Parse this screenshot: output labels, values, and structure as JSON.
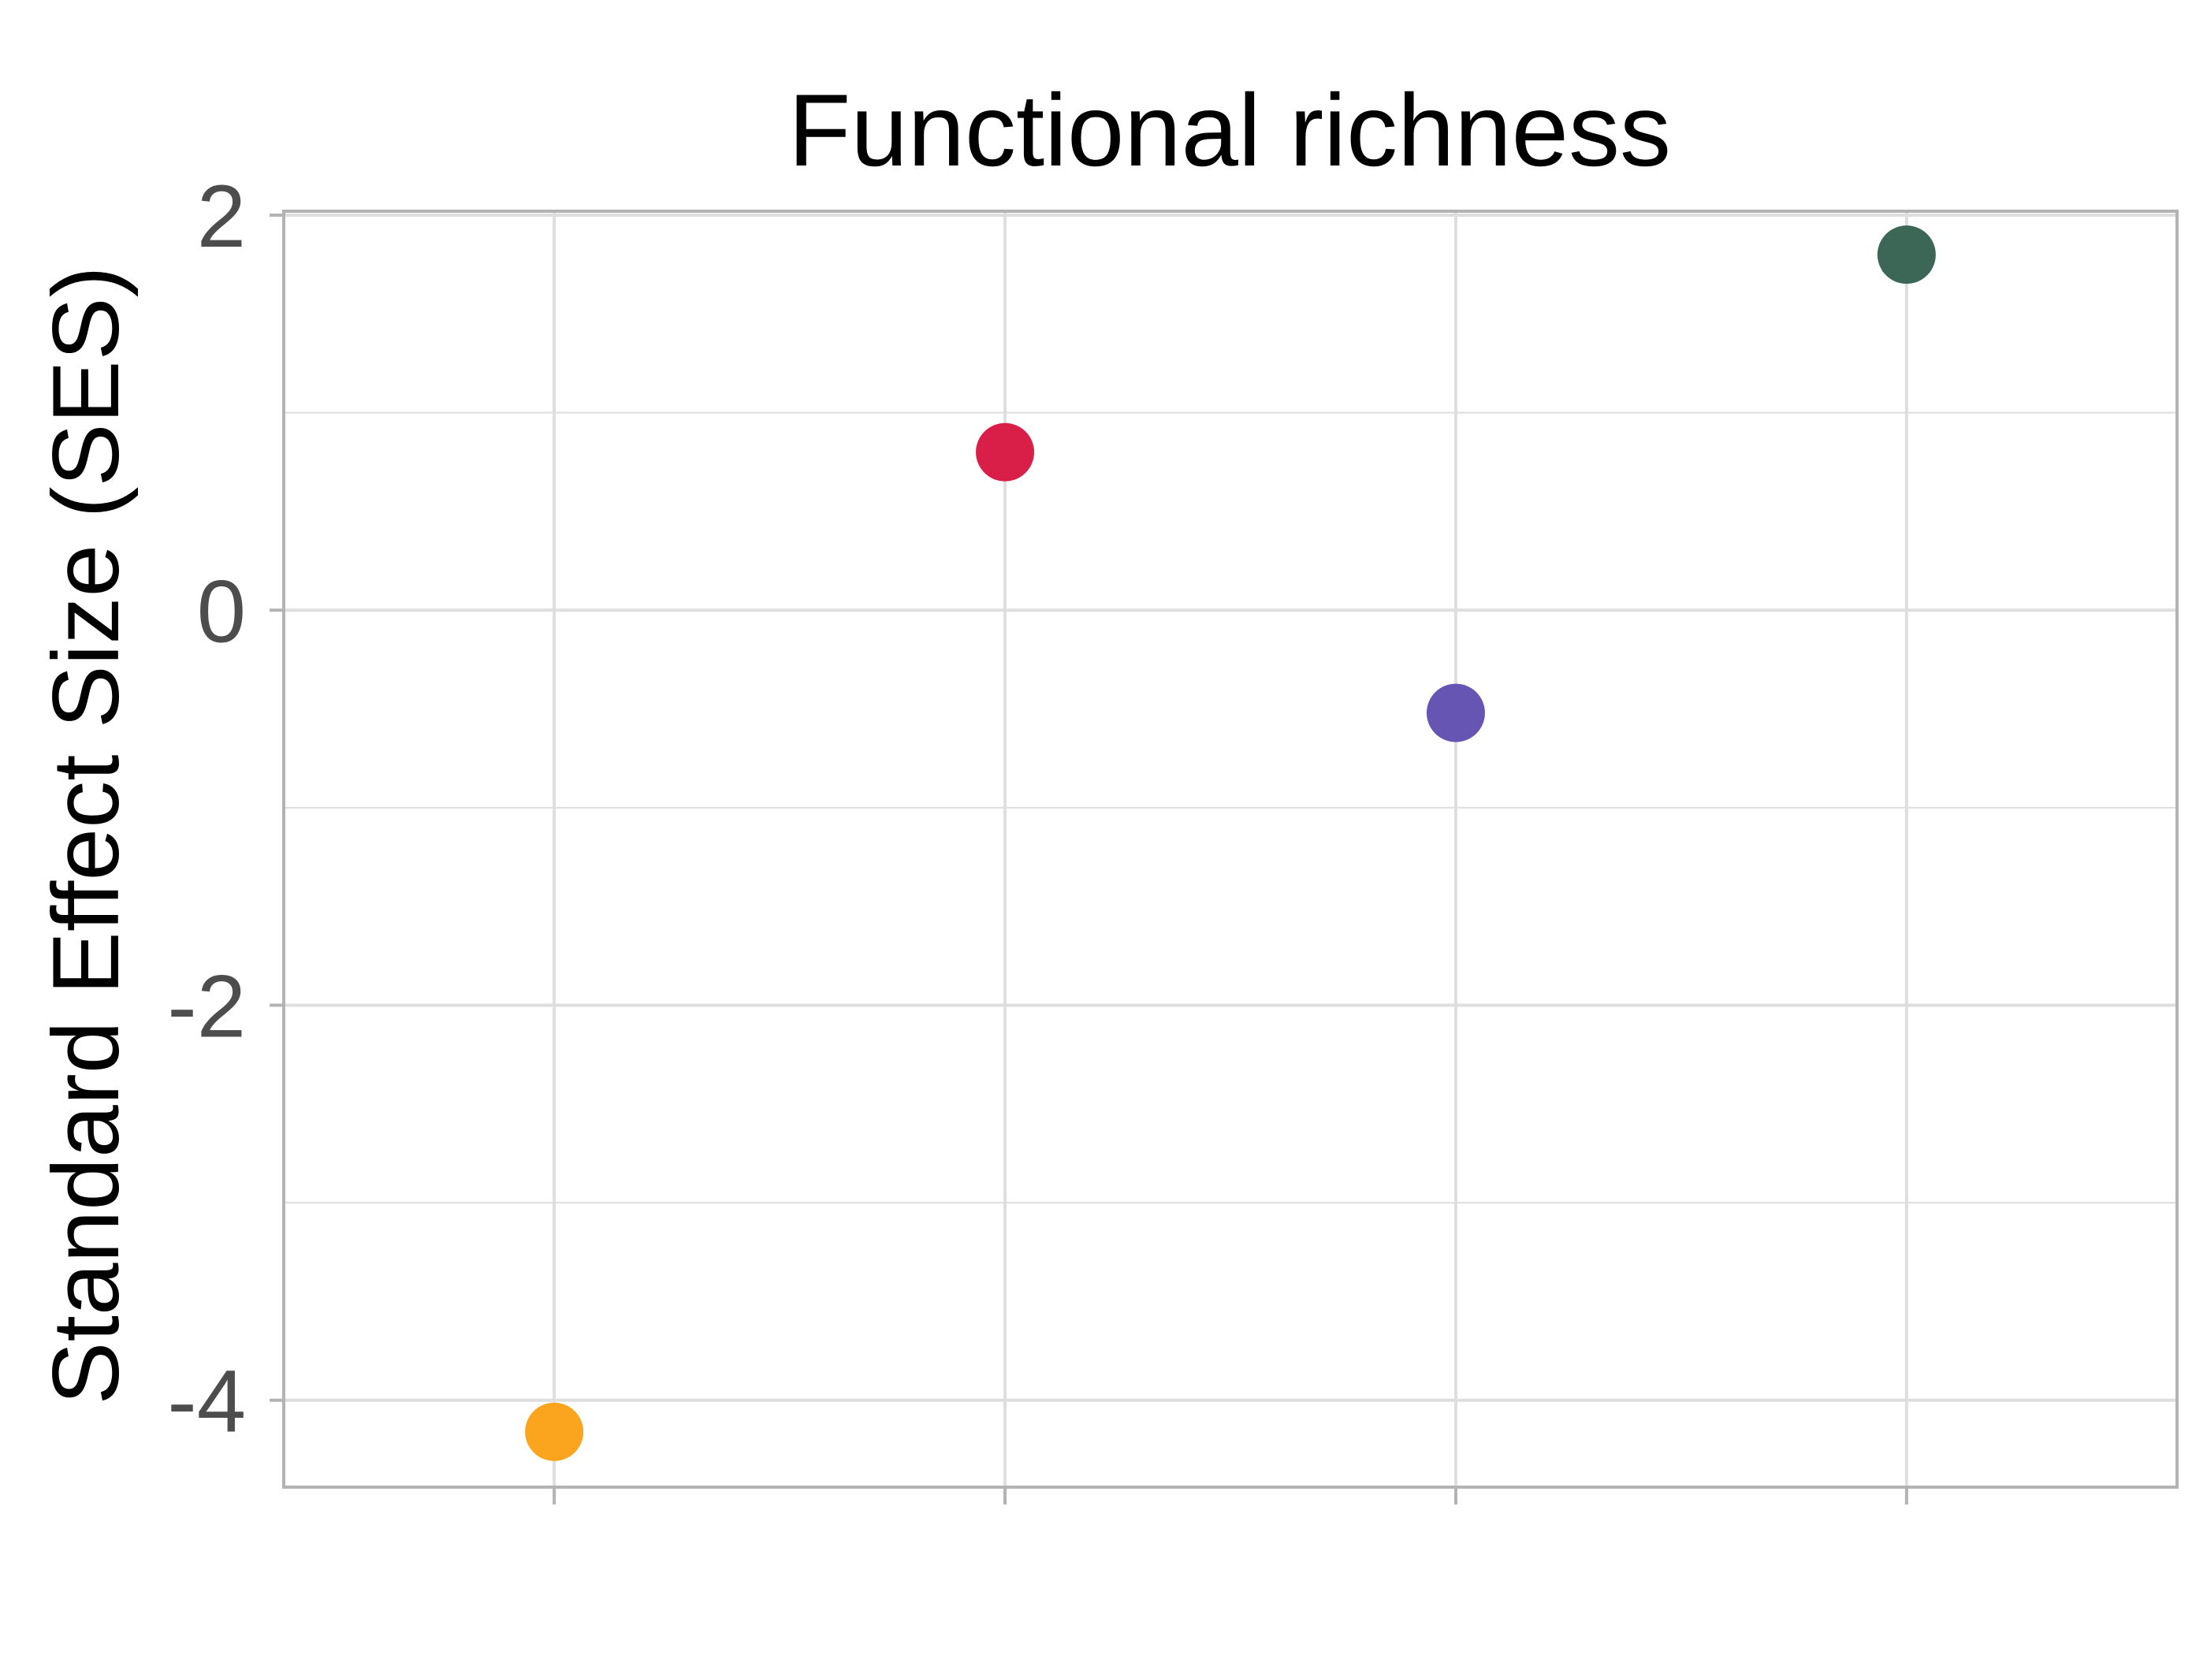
{
  "chart_data": {
    "type": "scatter",
    "title": "Functional richness",
    "xlabel": "",
    "ylabel": "Standard Effect Size (SES)",
    "x_positions": [
      1,
      2,
      3,
      4
    ],
    "x_tick_labels": [
      "",
      "",
      "",
      ""
    ],
    "xlim": [
      0.4,
      4.6
    ],
    "ylim": [
      -4.44,
      2.02
    ],
    "y_ticks": [
      2,
      0,
      -2,
      -4
    ],
    "y_tick_labels": [
      "2",
      "0",
      "-2",
      "-4"
    ],
    "grid": true,
    "points": [
      {
        "x": 1,
        "y": -4.16,
        "color": "#FBA51F"
      },
      {
        "x": 2,
        "y": 0.8,
        "color": "#D91E48"
      },
      {
        "x": 3,
        "y": -0.52,
        "color": "#6755B4"
      },
      {
        "x": 4,
        "y": 1.8,
        "color": "#3C6757"
      }
    ],
    "colors": {
      "grid": "#dedede",
      "panel_border": "#b3b3b3",
      "tick_text": "#4d4d4d"
    }
  }
}
